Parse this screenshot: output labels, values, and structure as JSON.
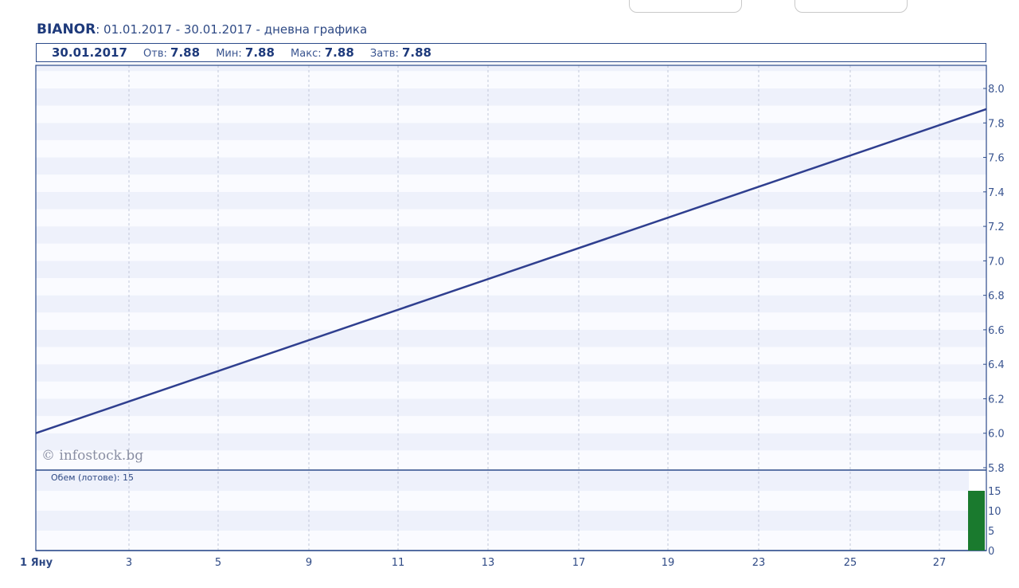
{
  "header": {
    "ticker": "BIANOR",
    "subtitle": ": 01.01.2017 - 30.01.2017 - дневна графика"
  },
  "info": {
    "date": "30.01.2017",
    "open_label": "Отв:",
    "open_value": "7.88",
    "min_label": "Мин:",
    "min_value": "7.88",
    "max_label": "Макс:",
    "max_value": "7.88",
    "close_label": "Затв:",
    "close_value": "7.88"
  },
  "watermark": "© infostock.bg",
  "volume_label": "Обем (лотове): 15",
  "colors": {
    "line": "#2f3f8f",
    "frame": "#2b4a8a",
    "band_dark": "#eef1fb",
    "band_light": "#fafbff",
    "volume_bar": "#1a7a2e"
  },
  "chart_data": [
    {
      "type": "line",
      "x_ticks": [
        "1 Яну",
        "3",
        "5",
        "9",
        "11",
        "13",
        "17",
        "19",
        "23",
        "25",
        "27"
      ],
      "y_ticks": [
        "5.8",
        "6.0",
        "6.2",
        "6.4",
        "6.6",
        "6.8",
        "7.0",
        "7.2",
        "7.4",
        "7.6",
        "7.8",
        "8.0"
      ],
      "ylim": [
        5.8,
        8.0
      ],
      "series": [
        {
          "points": [
            {
              "x": "1 Яну",
              "y": 6.0
            },
            {
              "x": "30.01.2017",
              "y": 7.88
            }
          ]
        }
      ]
    },
    {
      "type": "bar",
      "y_ticks": [
        "0",
        "5",
        "10",
        "15"
      ],
      "ylim": [
        0,
        15
      ],
      "bars": [
        {
          "x": "30.01.2017",
          "value": 15
        }
      ]
    }
  ]
}
